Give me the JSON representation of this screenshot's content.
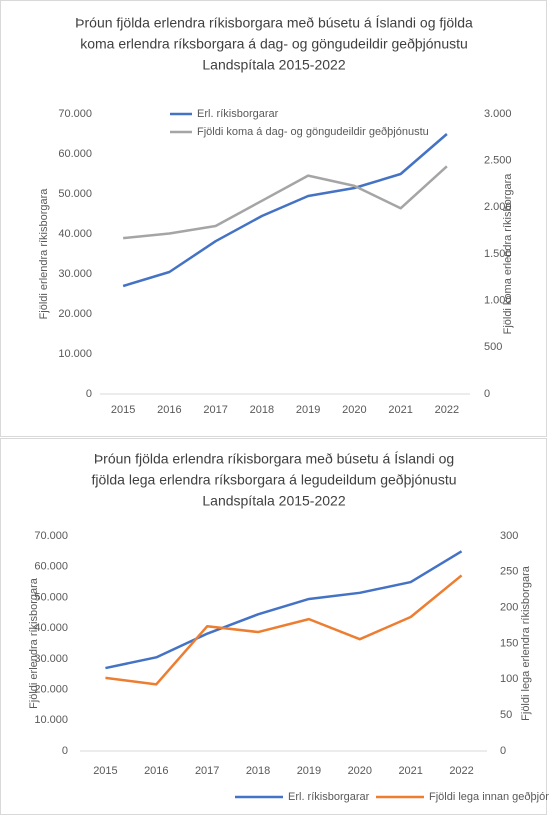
{
  "chart_data": [
    {
      "type": "line",
      "title": [
        "Þróun fjölda erlendra ríkisborgara með búsetu á Íslandi og fjölda",
        "koma erlendra ríksborgara á dag- og göngudeildir  geðþjónustu",
        "Landspítala 2015-2022"
      ],
      "y_label": "Fjöldi erlendra ríkisborgara",
      "y2_label": "Fjöldi koma erlendra ríkisborgara",
      "categories": [
        "2015",
        "2016",
        "2017",
        "2018",
        "2019",
        "2020",
        "2021",
        "2022"
      ],
      "series": [
        {
          "name": "Erl. ríkisborgarar",
          "color": "#4472c4",
          "values": [
            27000,
            30500,
            38200,
            44500,
            49500,
            51500,
            55000,
            65000
          ]
        },
        {
          "name": "Fjöldi koma á dag- og göngudeildir geðþjónustu",
          "color": "#a5a5a5",
          "axis": "y2",
          "values": [
            1670,
            1720,
            1800,
            2070,
            2340,
            2230,
            1990,
            2440
          ]
        }
      ],
      "ylim": [
        0,
        70000
      ],
      "yticks": [
        0,
        {
          "value": 10000,
          "label": "10.000"
        },
        {
          "value": 20000,
          "label": "20.000"
        },
        {
          "value": 30000,
          "label": "30.000"
        },
        {
          "value": 40000,
          "label": "40.000"
        },
        {
          "value": 50000,
          "label": "50.000"
        },
        {
          "value": 60000,
          "label": "60.000"
        },
        {
          "value": 70000,
          "label": "70.000"
        }
      ],
      "y2lim": [
        0,
        3000
      ],
      "y2ticks": [
        0,
        500,
        {
          "value": 1000,
          "label": "1.000"
        },
        {
          "value": 1500,
          "label": "1.500"
        },
        {
          "value": 2000,
          "label": "2.000"
        },
        {
          "value": 2500,
          "label": "2.500"
        },
        {
          "value": 3000,
          "label": "3.000"
        }
      ],
      "legend": "top",
      "grid": false
    },
    {
      "type": "line",
      "title": [
        "Þróun fjölda erlendra ríkisborgara með búsetu á Íslandi og",
        "fjölda lega erlendra ríksborgara á legudeildum geðþjónustu",
        "Landspítala 2015-2022"
      ],
      "y_label": "Fjöldi erlendra ríkisborgara",
      "y2_label": "Fjöldi lega erlendra ríkisborgara",
      "categories": [
        "2015",
        "2016",
        "2017",
        "2018",
        "2019",
        "2020",
        "2021",
        "2022"
      ],
      "series": [
        {
          "name": "Erl. ríkisborgarar",
          "color": "#4472c4",
          "values": [
            27000,
            30500,
            38200,
            44500,
            49500,
            51500,
            55000,
            65000
          ]
        },
        {
          "name": "Fjöldi lega innan geðþjónustu",
          "color": "#ed7d31",
          "axis": "y2",
          "values": [
            102,
            93,
            174,
            166,
            184,
            156,
            187,
            245
          ]
        }
      ],
      "ylim": [
        0,
        70000
      ],
      "yticks": [
        0,
        {
          "value": 10000,
          "label": "10.000"
        },
        {
          "value": 20000,
          "label": "20.000"
        },
        {
          "value": 30000,
          "label": "30.000"
        },
        {
          "value": 40000,
          "label": "40.000"
        },
        {
          "value": 50000,
          "label": "50.000"
        },
        {
          "value": 60000,
          "label": "60.000"
        },
        {
          "value": 70000,
          "label": "70.000"
        }
      ],
      "y2lim": [
        0,
        300
      ],
      "y2ticks": [
        0,
        50,
        100,
        150,
        200,
        250,
        300
      ],
      "legend": "bottom",
      "grid": false
    }
  ]
}
